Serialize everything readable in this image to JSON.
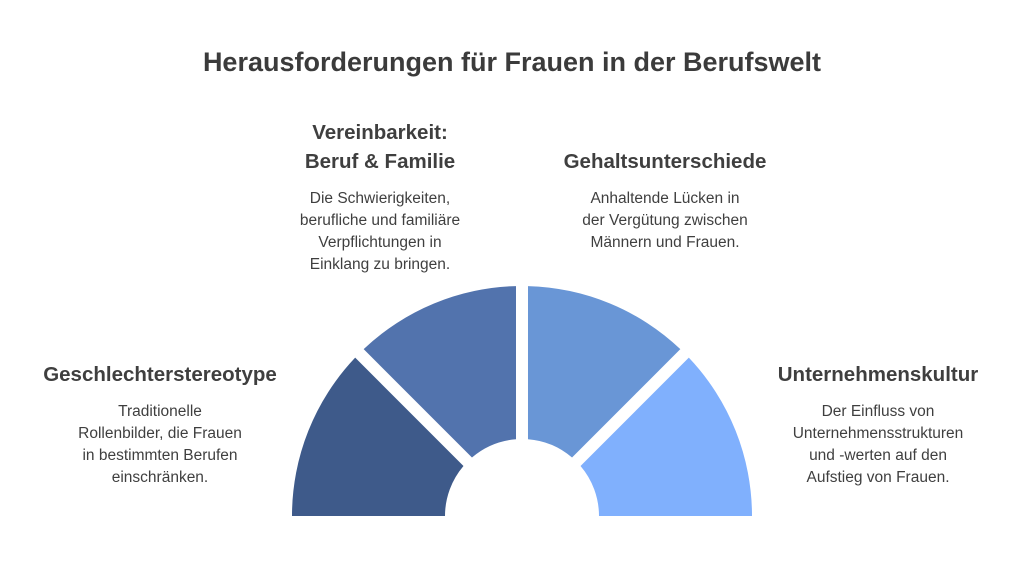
{
  "title": "Herausforderungen für Frauen in der Berufswelt",
  "segments": [
    {
      "heading": "Geschlechterstereotype",
      "description": "Traditionelle\nRollenbilder, die Frauen\nin bestimmten Berufen\neinschränken.",
      "color": "#3e5a8a"
    },
    {
      "heading": "Vereinbarkeit:\nBeruf & Familie",
      "description": "Die Schwierigkeiten,\nberufliche und familiäre\nVerpflichtungen in\nEinklang zu bringen.",
      "color": "#5273ad"
    },
    {
      "heading": "Gehaltsunterschiede",
      "description": "Anhaltende Lücken in\nder Vergütung zwischen\nMännern und Frauen.",
      "color": "#6996d6"
    },
    {
      "heading": "Unternehmenskultur",
      "description": "Der Einfluss von\nUnternehmensstrukturen\nund -werten auf den\nAufstieg von Frauen.",
      "color": "#80b0fd"
    }
  ]
}
